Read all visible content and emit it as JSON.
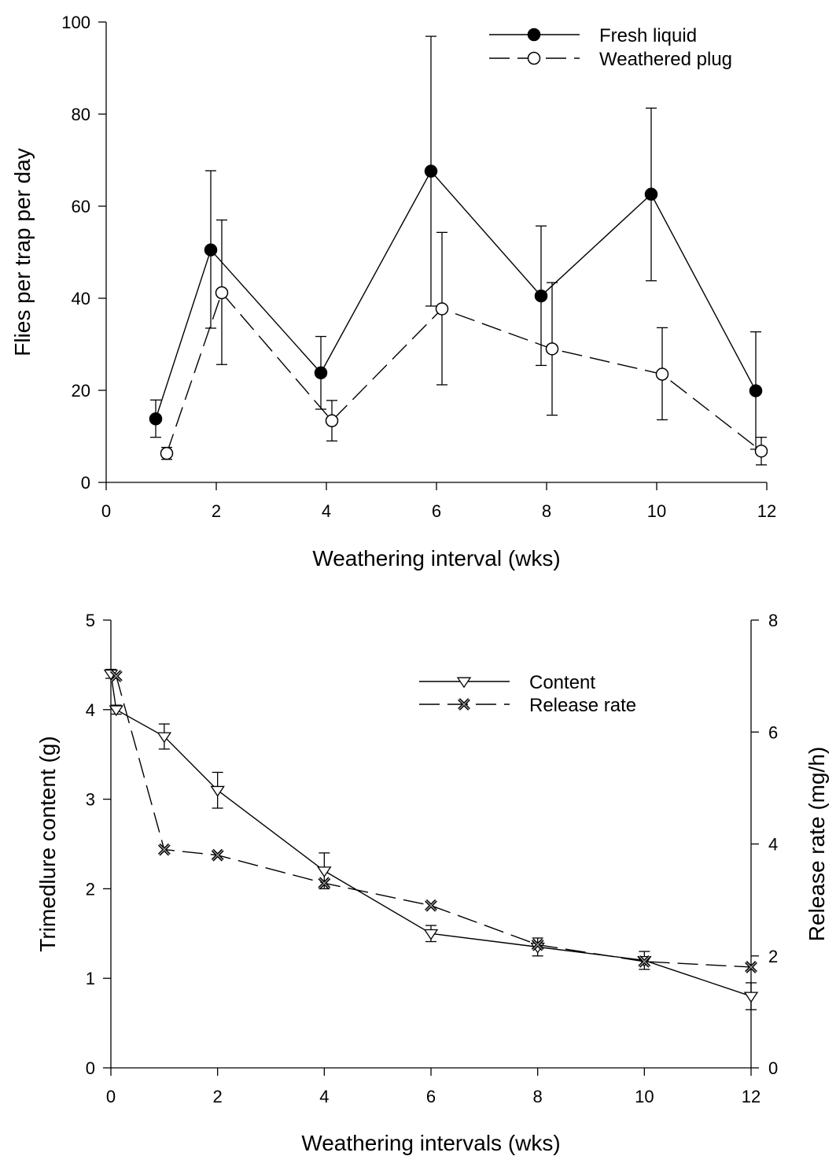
{
  "chart_data": [
    {
      "type": "line",
      "xlabel": "Weathering interval (wks)",
      "ylabel": "Flies per trap per day",
      "xlim": [
        0,
        12
      ],
      "ylim": [
        0,
        100
      ],
      "xticks": [
        0,
        2,
        4,
        6,
        8,
        10,
        12
      ],
      "yticks": [
        0,
        20,
        40,
        60,
        80,
        100
      ],
      "legend_position": "top-right",
      "grid": false,
      "series": [
        {
          "name": "Fresh liquid",
          "marker": "filled-circle",
          "line": "solid",
          "color": "#000000",
          "x": [
            0.9,
            1.9,
            3.9,
            5.9,
            7.9,
            9.9,
            11.8
          ],
          "y": [
            13.8,
            50.5,
            23.8,
            67.6,
            40.5,
            62.6,
            19.9
          ],
          "err_low": [
            9.8,
            33.5,
            15.9,
            38.3,
            25.4,
            43.8,
            7.2
          ],
          "err_high": [
            17.9,
            67.7,
            31.7,
            96.9,
            55.7,
            81.3,
            32.7
          ]
        },
        {
          "name": "Weathered plug",
          "marker": "open-circle",
          "line": "dashed",
          "color": "#000000",
          "x": [
            1.1,
            2.1,
            4.1,
            6.1,
            8.1,
            10.1,
            11.9
          ],
          "y": [
            6.3,
            41.2,
            13.4,
            37.7,
            29.0,
            23.5,
            6.8
          ],
          "err_low": [
            5.0,
            25.6,
            9.0,
            21.2,
            14.6,
            13.6,
            3.8
          ],
          "err_high": [
            7.6,
            57.0,
            17.8,
            54.3,
            43.4,
            33.6,
            9.8
          ]
        }
      ]
    },
    {
      "type": "line",
      "xlabel": "Weathering intervals (wks)",
      "ylabel": "Trimedlure content (g)",
      "y2label": "Release rate (mg/h)",
      "xlim": [
        0,
        12
      ],
      "ylim": [
        0,
        5
      ],
      "y2lim": [
        0,
        8
      ],
      "xticks": [
        0,
        2,
        4,
        6,
        8,
        10,
        12
      ],
      "yticks": [
        0,
        1,
        2,
        3,
        4,
        5
      ],
      "y2ticks": [
        0,
        2,
        4,
        6,
        8
      ],
      "legend_position": "top-right",
      "grid": false,
      "series": [
        {
          "name": "Content",
          "axis": "left",
          "marker": "open-triangle-down",
          "line": "solid",
          "color": "#000000",
          "x": [
            0,
            0.1,
            1,
            2,
            4,
            6,
            8,
            10,
            12
          ],
          "y": [
            4.4,
            4.0,
            3.7,
            3.1,
            2.2,
            1.5,
            1.35,
            1.2,
            0.8
          ],
          "err": [
            0.05,
            0.05,
            0.14,
            0.2,
            0.2,
            0.09,
            0.1,
            0.1,
            0.15
          ]
        },
        {
          "name": "Release rate",
          "axis": "right",
          "marker": "x-cross",
          "line": "dashed",
          "color": "#000000",
          "x": [
            0.1,
            1,
            2,
            4,
            6,
            8,
            10,
            12
          ],
          "y": [
            7.0,
            3.9,
            3.8,
            3.3,
            2.9,
            2.2,
            1.9,
            1.8
          ]
        }
      ]
    }
  ]
}
